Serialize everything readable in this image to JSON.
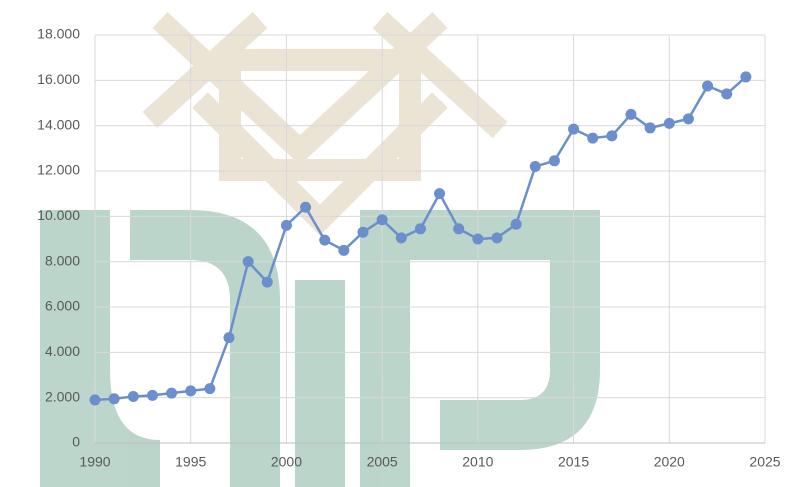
{
  "chart_data": {
    "type": "line",
    "x": [
      1990,
      1991,
      1992,
      1993,
      1994,
      1995,
      1996,
      1997,
      1998,
      1999,
      2000,
      2001,
      2002,
      2003,
      2004,
      2005,
      2006,
      2007,
      2008,
      2009,
      2010,
      2011,
      2012,
      2013,
      2014,
      2015,
      2016,
      2017,
      2018,
      2019,
      2020,
      2021,
      2022,
      2023,
      2024
    ],
    "series": [
      {
        "color": "#6a8fcc",
        "values": [
          1900,
          1950,
          2050,
          2100,
          2200,
          2300,
          2400,
          4650,
          8000,
          7100,
          9600,
          10400,
          8950,
          8500,
          9300,
          9850,
          9050,
          9450,
          11000,
          9450,
          9000,
          9050,
          9650,
          12200,
          12450,
          13850,
          13450,
          13550,
          14500,
          13900,
          14100,
          14300,
          15750,
          15400,
          16150
        ]
      }
    ],
    "xlim": [
      1990,
      2025
    ],
    "xticks": [
      1990,
      1995,
      2000,
      2005,
      2010,
      2015,
      2020,
      2025
    ],
    "ylim": [
      0,
      18000
    ],
    "yticks": [
      0,
      {
        "value": 2000,
        "label": "2.000"
      },
      {
        "value": 4000,
        "label": "4.000"
      },
      {
        "value": 6000,
        "label": "6.000"
      },
      {
        "value": 8000,
        "label": "8.000"
      },
      {
        "value": 10000,
        "label": "10.000"
      },
      {
        "value": 12000,
        "label": "12.000"
      },
      {
        "value": 14000,
        "label": "14.000"
      },
      {
        "value": 16000,
        "label": "16.000"
      },
      {
        "value": 18000,
        "label": "18.000"
      }
    ],
    "grid": true
  }
}
